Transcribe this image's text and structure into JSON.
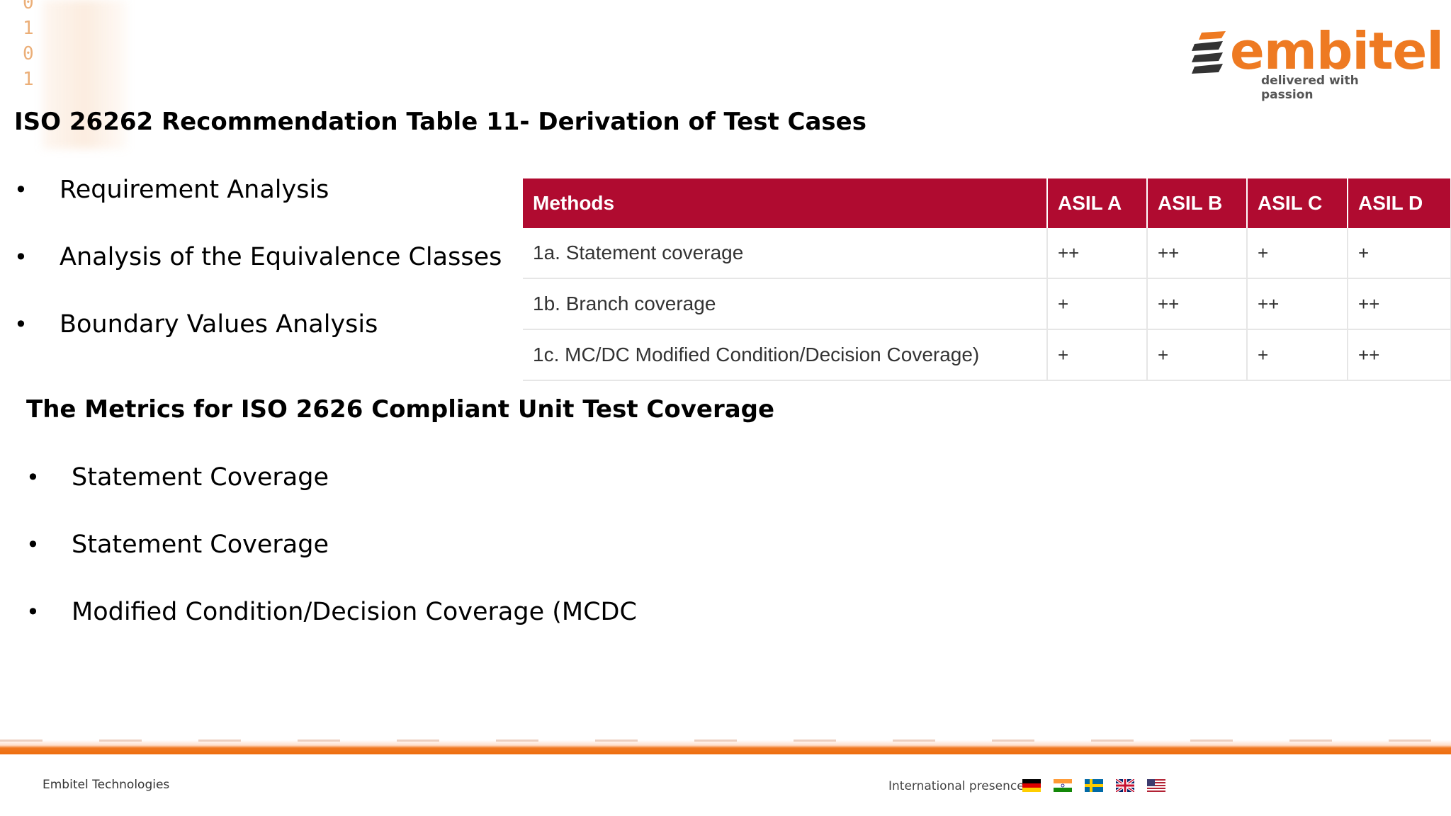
{
  "decor": {
    "binary_digits": [
      "0",
      "1",
      "0",
      "1"
    ]
  },
  "logo": {
    "name": "embitel",
    "tagline": "delivered with passion",
    "accent": "#ee7a22"
  },
  "section1": {
    "title": "ISO 26262 Recommendation Table 11- Derivation of Test Cases",
    "bullets": [
      "Requirement Analysis",
      "Analysis of the Equivalence Classes",
      "Boundary Values Analysis"
    ]
  },
  "table": {
    "header_color": "#b00b30",
    "headers": [
      "Methods",
      "ASIL A",
      "ASIL B",
      "ASIL C",
      "ASIL D"
    ],
    "rows": [
      [
        "1a. Statement coverage",
        "++",
        "++",
        "+",
        "+"
      ],
      [
        "1b. Branch coverage",
        "+",
        "++",
        "++",
        "++"
      ],
      [
        "1c. MC/DC Modified Condition/Decision Coverage)",
        "+",
        "+",
        "+",
        "++"
      ]
    ]
  },
  "section2": {
    "title": "The Metrics for ISO 2626 Compliant Unit Test Coverage",
    "bullets": [
      "Statement Coverage",
      "Statement Coverage",
      "Modified Condition/Decision Coverage (MCDC"
    ]
  },
  "footer": {
    "company": "Embitel Technologies",
    "presence_label": "International presence:",
    "flags": [
      "germany-flag-icon",
      "india-flag-icon",
      "sweden-flag-icon",
      "uk-flag-icon",
      "usa-flag-icon"
    ]
  }
}
